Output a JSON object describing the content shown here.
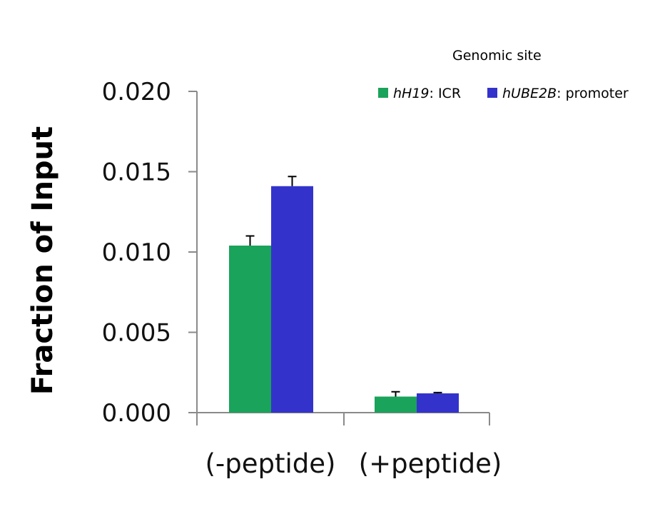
{
  "chart_data": {
    "type": "bar",
    "categories": [
      "(-peptide)",
      "(+peptide)"
    ],
    "series": [
      {
        "name_italic": "hH19",
        "name_suffix": ": ICR",
        "values": [
          0.0104,
          0.001
        ],
        "errors": [
          0.0006,
          0.0003
        ],
        "color": "#1aa35a"
      },
      {
        "name_italic": "hUBE2B",
        "name_suffix": ": promoter",
        "values": [
          0.0141,
          0.0012
        ],
        "errors": [
          0.0006,
          5e-05
        ],
        "color": "#3333cc"
      }
    ],
    "ylabel": "Fraction  of  Input",
    "ylim": [
      0,
      0.02
    ],
    "yticks": [
      "0.000",
      "0.005",
      "0.010",
      "0.015",
      "0.020"
    ],
    "ytick_values": [
      0,
      0.005,
      0.01,
      0.015,
      0.02
    ],
    "legend_title": "Genomic site",
    "legend_position": "top-right",
    "grid": false
  }
}
